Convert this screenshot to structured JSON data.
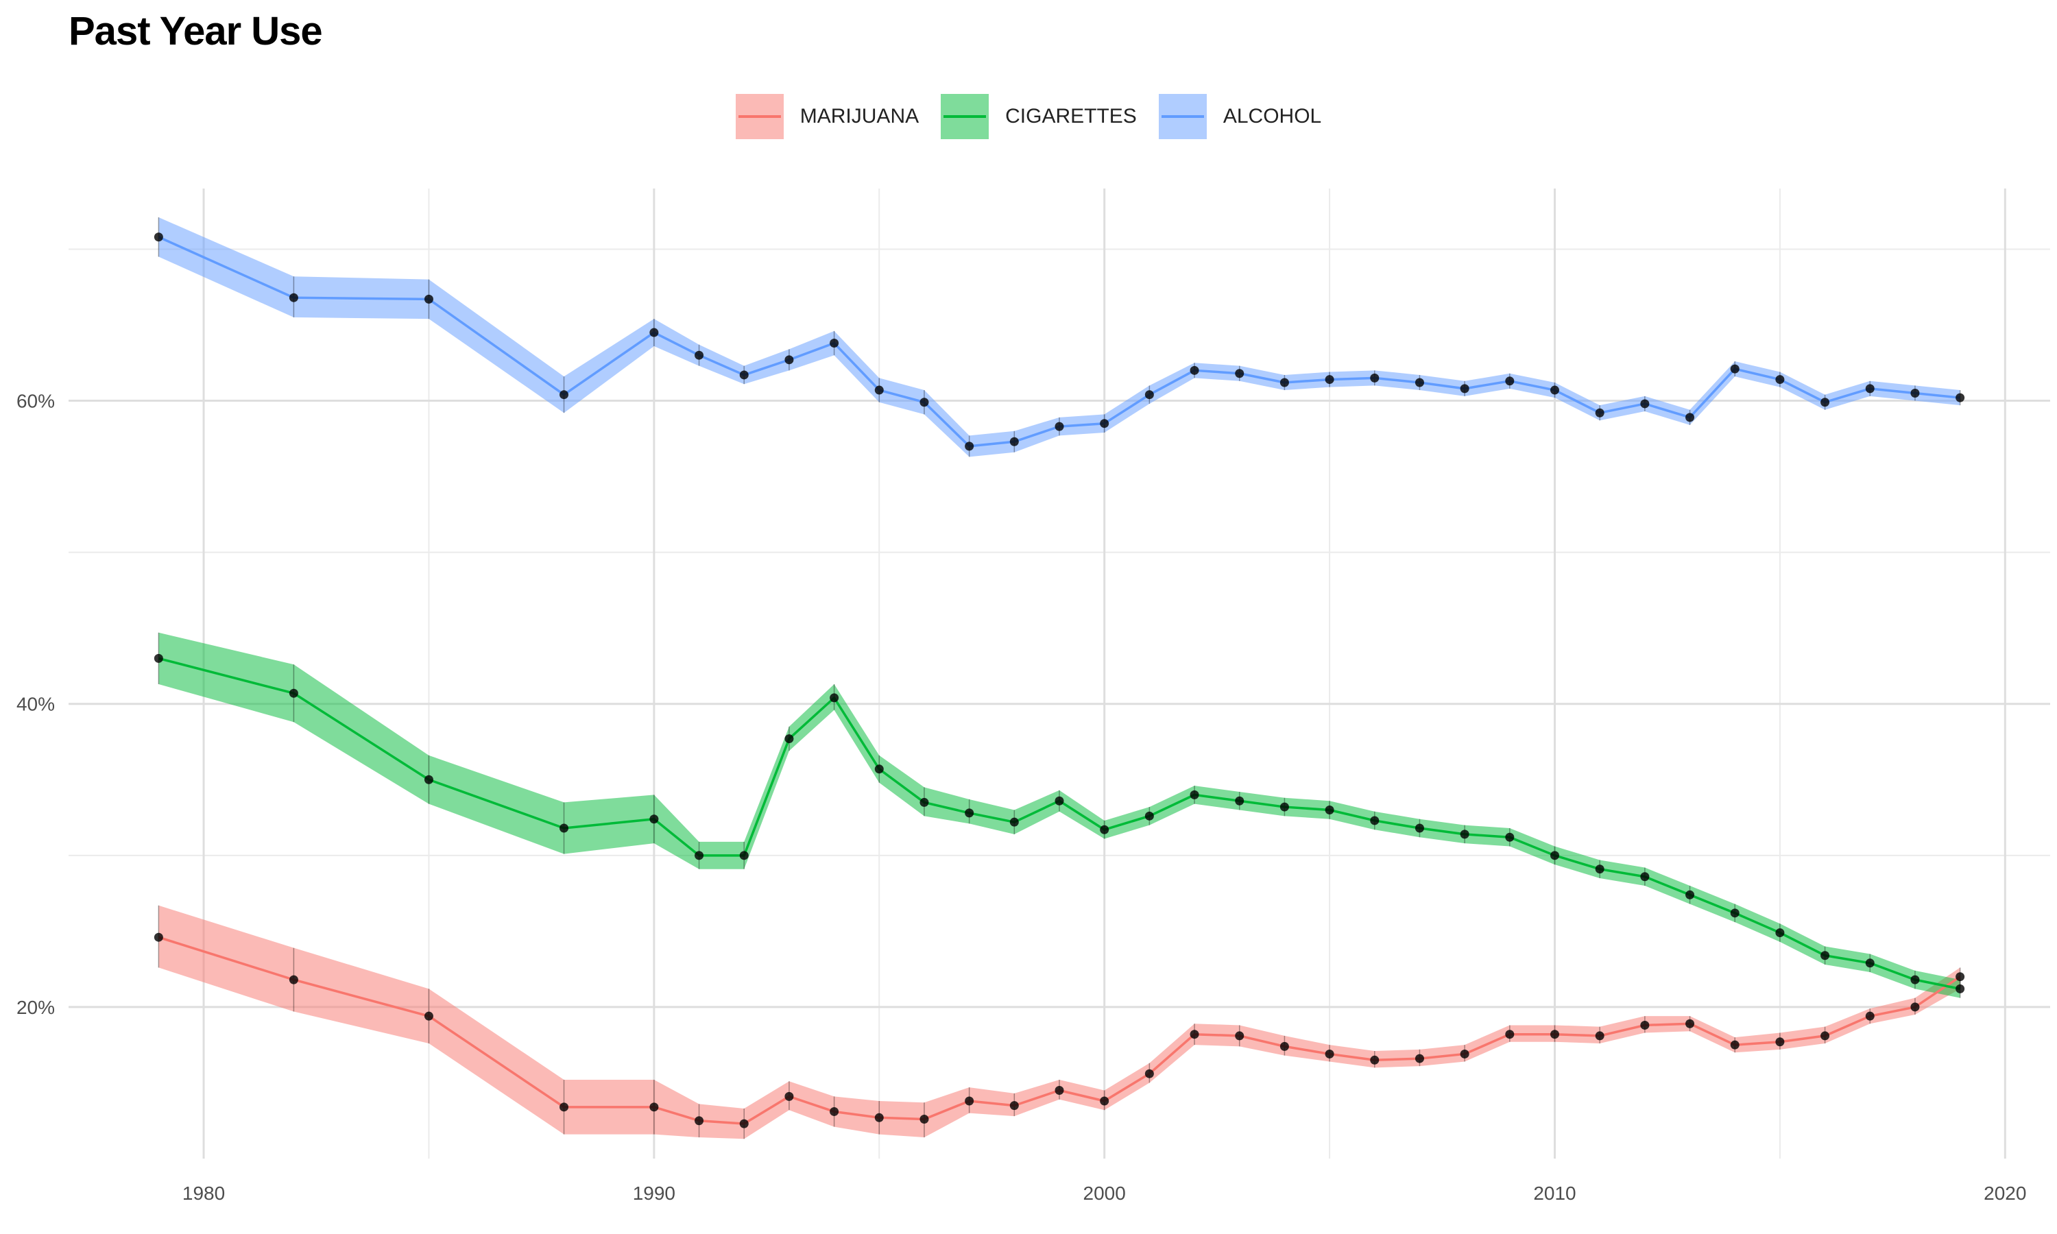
{
  "chart_data": {
    "type": "line",
    "title": "Past Year Use",
    "xlabel": "",
    "ylabel": "",
    "xlim": [
      1977,
      2021
    ],
    "ylim": [
      10,
      74
    ],
    "x_ticks": [
      1980,
      1990,
      2000,
      2010,
      2020
    ],
    "y_ticks": [
      20,
      40,
      60
    ],
    "y_tick_labels": [
      "20%",
      "40%",
      "60%"
    ],
    "grid": true,
    "legend_position": "top",
    "colors": {
      "MARIJUANA": "#F8766D",
      "CIGARETTES": "#00BA38",
      "ALCOHOL": "#619CFF"
    },
    "series": [
      {
        "name": "MARIJUANA",
        "x": [
          1979,
          1982,
          1985,
          1988,
          1990,
          1991,
          1992,
          1993,
          1994,
          1995,
          1996,
          1997,
          1998,
          1999,
          2000,
          2001,
          2002,
          2003,
          2004,
          2005,
          2006,
          2007,
          2008,
          2009,
          2010,
          2011,
          2012,
          2013,
          2014,
          2015,
          2016,
          2017,
          2018,
          2019
        ],
        "y": [
          24.6,
          21.8,
          19.4,
          13.4,
          13.4,
          12.5,
          12.3,
          14.1,
          13.1,
          12.7,
          12.6,
          13.8,
          13.5,
          14.5,
          13.8,
          15.6,
          18.2,
          18.1,
          17.4,
          16.9,
          16.5,
          16.6,
          16.9,
          18.2,
          18.2,
          18.1,
          18.8,
          18.9,
          17.5,
          17.7,
          18.1,
          19.4,
          20.0,
          22.0
        ],
        "lower": [
          22.6,
          19.7,
          17.6,
          11.6,
          11.6,
          11.4,
          11.3,
          13.2,
          12.1,
          11.6,
          11.4,
          13.0,
          12.8,
          13.9,
          13.2,
          15.0,
          17.5,
          17.4,
          16.8,
          16.4,
          16.0,
          16.1,
          16.4,
          17.7,
          17.7,
          17.6,
          18.3,
          18.4,
          17.0,
          17.2,
          17.6,
          18.9,
          19.5,
          21.2
        ],
        "upper": [
          26.7,
          23.9,
          21.2,
          15.2,
          15.2,
          13.6,
          13.3,
          15.1,
          14.1,
          13.8,
          13.7,
          14.7,
          14.3,
          15.2,
          14.5,
          16.3,
          18.9,
          18.8,
          18.1,
          17.5,
          17.1,
          17.2,
          17.5,
          18.8,
          18.8,
          18.7,
          19.4,
          19.4,
          18.0,
          18.3,
          18.7,
          19.9,
          20.6,
          22.6
        ]
      },
      {
        "name": "CIGARETTES",
        "x": [
          1979,
          1982,
          1985,
          1988,
          1990,
          1991,
          1992,
          1993,
          1994,
          1995,
          1996,
          1997,
          1998,
          1999,
          2000,
          2001,
          2002,
          2003,
          2004,
          2005,
          2006,
          2007,
          2008,
          2009,
          2010,
          2011,
          2012,
          2013,
          2014,
          2015,
          2016,
          2017,
          2018,
          2019
        ],
        "y": [
          43.0,
          40.7,
          35.0,
          31.8,
          32.4,
          30.0,
          30.0,
          37.7,
          40.4,
          35.7,
          33.5,
          32.8,
          32.2,
          33.6,
          31.7,
          32.6,
          34.0,
          33.6,
          33.2,
          33.0,
          32.3,
          31.8,
          31.4,
          31.2,
          30.0,
          29.1,
          28.6,
          27.4,
          26.2,
          24.9,
          23.4,
          22.9,
          21.8,
          21.2
        ],
        "lower": [
          41.3,
          38.8,
          33.4,
          30.1,
          30.8,
          29.1,
          29.1,
          36.9,
          39.6,
          34.8,
          32.6,
          32.1,
          31.4,
          32.9,
          31.1,
          32.0,
          33.4,
          33.0,
          32.6,
          32.4,
          31.7,
          31.2,
          30.8,
          30.6,
          29.4,
          28.5,
          28.0,
          26.8,
          25.6,
          24.3,
          22.8,
          22.3,
          21.2,
          20.6
        ],
        "upper": [
          44.7,
          42.6,
          36.6,
          33.5,
          34.0,
          30.9,
          30.9,
          38.5,
          41.3,
          36.6,
          34.5,
          33.7,
          33.0,
          34.3,
          32.3,
          33.2,
          34.6,
          34.2,
          33.8,
          33.6,
          32.9,
          32.4,
          32.0,
          31.8,
          30.6,
          29.7,
          29.2,
          28.0,
          26.8,
          25.5,
          24.0,
          23.5,
          22.4,
          21.8
        ]
      },
      {
        "name": "ALCOHOL",
        "x": [
          1979,
          1982,
          1985,
          1988,
          1990,
          1991,
          1992,
          1993,
          1994,
          1995,
          1996,
          1997,
          1998,
          1999,
          2000,
          2001,
          2002,
          2003,
          2004,
          2005,
          2006,
          2007,
          2008,
          2009,
          2010,
          2011,
          2012,
          2013,
          2014,
          2015,
          2016,
          2017,
          2018,
          2019
        ],
        "y": [
          70.8,
          66.8,
          66.7,
          60.4,
          64.5,
          63.0,
          61.7,
          62.7,
          63.8,
          60.7,
          59.9,
          57.0,
          57.3,
          58.3,
          58.5,
          60.4,
          62.0,
          61.8,
          61.2,
          61.4,
          61.5,
          61.2,
          60.8,
          61.3,
          60.7,
          59.2,
          59.8,
          58.9,
          62.1,
          61.4,
          59.9,
          60.8,
          60.5,
          60.2
        ],
        "lower": [
          69.5,
          65.5,
          65.4,
          59.2,
          63.6,
          62.3,
          61.1,
          62.0,
          63.0,
          59.9,
          59.1,
          56.3,
          56.6,
          57.7,
          57.9,
          59.8,
          61.5,
          61.3,
          60.7,
          60.9,
          61.0,
          60.7,
          60.3,
          60.8,
          60.2,
          58.7,
          59.3,
          58.4,
          61.6,
          60.9,
          59.4,
          60.3,
          60.0,
          59.7
        ],
        "upper": [
          72.1,
          68.2,
          68.0,
          61.6,
          65.4,
          63.7,
          62.3,
          63.4,
          64.6,
          61.5,
          60.7,
          57.7,
          58.0,
          58.9,
          59.1,
          61.0,
          62.5,
          62.3,
          61.7,
          61.9,
          62.0,
          61.7,
          61.3,
          61.8,
          61.2,
          59.7,
          60.3,
          59.4,
          62.6,
          61.9,
          60.4,
          61.3,
          61.0,
          60.7
        ]
      }
    ]
  }
}
